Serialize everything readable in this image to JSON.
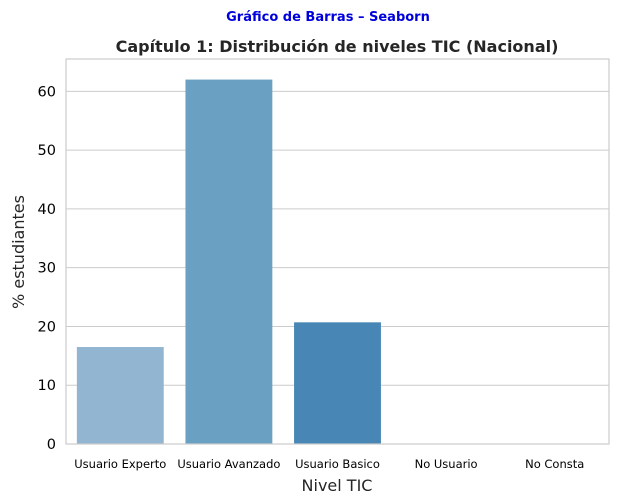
{
  "suptitle": {
    "text": "Gráfico de Barras – Seaborn",
    "color": "#0000dd"
  },
  "chart_data": {
    "type": "bar",
    "title": "Capítulo 1: Distribución de niveles TIC (Nacional)",
    "xlabel": "Nivel TIC",
    "ylabel": "% estudiantes",
    "categories": [
      "Usuario Experto",
      "Usuario Avanzado",
      "Usuario Basico",
      "No Usuario",
      "No Consta"
    ],
    "values": [
      16.5,
      62.0,
      20.7,
      0,
      0
    ],
    "colors": [
      "#92b6d2",
      "#6aa0c2",
      "#4887b5",
      "#2f6fa6",
      "#1b5896"
    ],
    "ylim": [
      0,
      65.5
    ],
    "yticks": [
      0,
      10,
      20,
      30,
      40,
      50,
      60
    ],
    "grid": true,
    "legend": false
  }
}
